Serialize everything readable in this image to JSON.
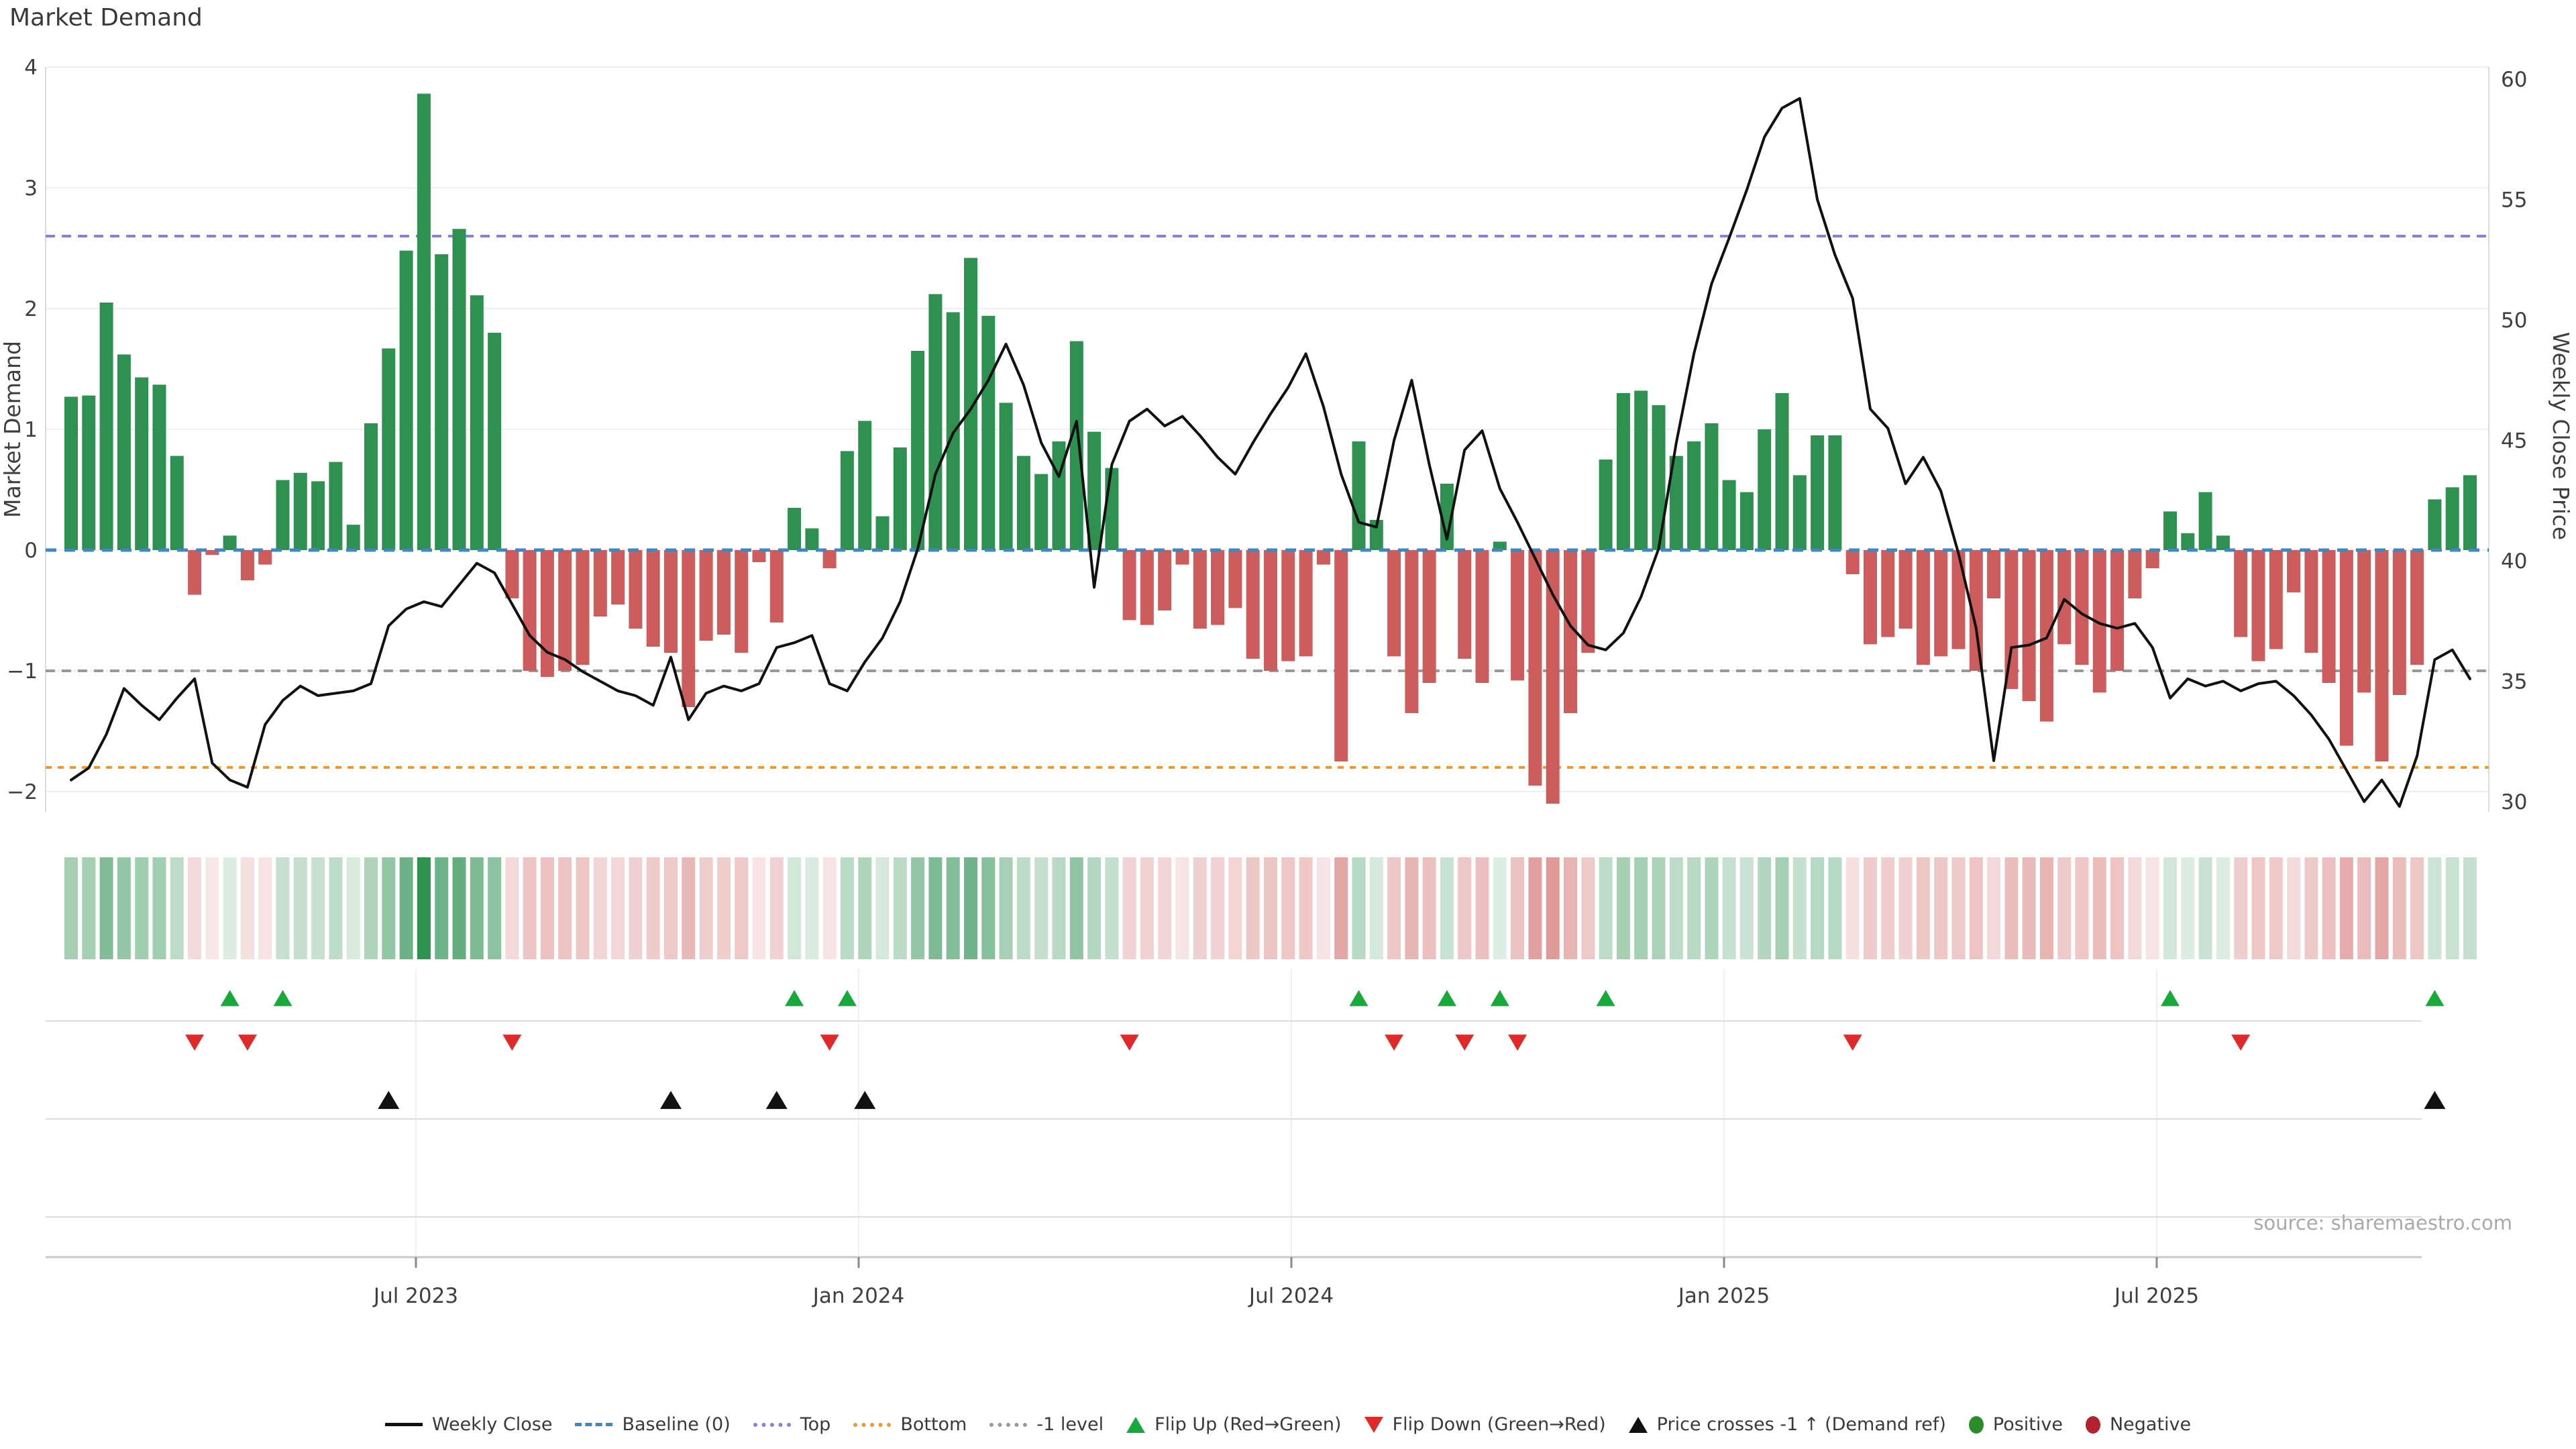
{
  "title": "Market Demand",
  "source": "source: sharemaestro.com",
  "axes": {
    "left_title": "Market Demand",
    "right_title": "Weekly Close Price",
    "left_ticks": [
      4,
      3,
      2,
      1,
      0,
      -1,
      -2
    ],
    "right_ticks": [
      60,
      55,
      50,
      45,
      40,
      35,
      30
    ],
    "x_ticks": [
      {
        "x": 620,
        "label": "Jul 2023"
      },
      {
        "x": 1280,
        "label": "Jan 2024"
      },
      {
        "x": 1925,
        "label": "Jul 2024"
      },
      {
        "x": 2570,
        "label": "Jan 2025"
      },
      {
        "x": 3215,
        "label": "Jul 2025"
      }
    ]
  },
  "colors": {
    "bar_positive": "#2e9152",
    "bar_negative": "#cd5c5c",
    "price_line": "#111111",
    "baseline": "#3f87c0",
    "top_line": "#8781d8",
    "bottom_line": "#f0992e",
    "minus1_line": "#999999",
    "flip_up": "#18a93b",
    "flip_down": "#e02a2a",
    "cross_marker": "#111111",
    "grid": "#eef0f6",
    "panel_grid": "#dcdcdc",
    "axis_text": "#3f3f3f"
  },
  "chart_data": {
    "type": "combo",
    "title": "Market Demand",
    "ylabel_left": "Market Demand",
    "ylabel_right": "Weekly Close Price",
    "ylim_left": [
      -2,
      4
    ],
    "ylim_right": [
      30,
      60
    ],
    "x_tick_labels": [
      "Jul 2023",
      "Jan 2024",
      "Jul 2024",
      "Jan 2025",
      "Jul 2025"
    ],
    "ref_lines": {
      "baseline": 0,
      "top": 2.6,
      "bottom": -1.8,
      "minus1": -1
    },
    "series": [
      {
        "name": "Market Demand",
        "type": "bar"
      },
      {
        "name": "Weekly Close",
        "type": "line"
      }
    ],
    "demand": [
      1.27,
      1.28,
      2.05,
      1.62,
      1.43,
      1.37,
      0.78,
      -0.37,
      -0.04,
      0.12,
      -0.25,
      -0.12,
      0.58,
      0.64,
      0.57,
      0.73,
      0.21,
      1.05,
      1.67,
      2.48,
      3.78,
      2.45,
      2.66,
      2.11,
      1.8,
      -0.4,
      -1.0,
      -1.05,
      -1.0,
      -0.95,
      -0.55,
      -0.45,
      -0.65,
      -0.8,
      -0.85,
      -1.3,
      -0.75,
      -0.7,
      -0.85,
      -0.1,
      -0.6,
      0.35,
      0.18,
      -0.15,
      0.82,
      1.07,
      0.28,
      0.85,
      1.65,
      2.12,
      1.97,
      2.42,
      1.94,
      1.22,
      0.78,
      0.63,
      0.9,
      1.73,
      0.98,
      0.68,
      -0.58,
      -0.62,
      -0.5,
      -0.12,
      -0.65,
      -0.62,
      -0.48,
      -0.9,
      -1.0,
      -0.92,
      -0.88,
      -0.12,
      -1.75,
      0.9,
      0.25,
      -0.88,
      -1.35,
      -1.1,
      0.55,
      -0.9,
      -1.1,
      0.07,
      -1.08,
      -1.95,
      -2.1,
      -1.35,
      -0.85,
      0.75,
      1.3,
      1.32,
      1.2,
      0.78,
      0.9,
      1.05,
      0.58,
      0.48,
      1.0,
      1.3,
      0.62,
      0.95,
      0.95,
      -0.2,
      -0.78,
      -0.72,
      -0.65,
      -0.95,
      -0.88,
      -0.82,
      -1.0,
      -0.4,
      -1.15,
      -1.25,
      -1.42,
      -0.78,
      -0.95,
      -1.18,
      -1.0,
      -0.4,
      -0.15,
      0.32,
      0.14,
      0.48,
      0.12,
      -0.72,
      -0.92,
      -0.82,
      -0.35,
      -0.85,
      -1.1,
      -1.62,
      -1.18,
      -1.75,
      -1.2,
      -0.95,
      0.42,
      0.52,
      0.62
    ],
    "price": [
      30.9,
      31.4,
      32.8,
      34.7,
      34.0,
      33.4,
      34.3,
      35.1,
      31.6,
      30.9,
      30.6,
      33.2,
      34.2,
      34.8,
      34.4,
      34.5,
      34.6,
      34.9,
      37.3,
      38.0,
      38.3,
      38.1,
      39.0,
      39.9,
      39.5,
      38.2,
      36.9,
      36.2,
      35.9,
      35.4,
      35.0,
      34.6,
      34.4,
      34.0,
      36.0,
      33.4,
      34.5,
      34.8,
      34.6,
      34.9,
      36.4,
      36.6,
      36.9,
      34.9,
      34.6,
      35.8,
      36.8,
      38.3,
      40.5,
      43.6,
      45.3,
      46.3,
      47.5,
      49.0,
      47.3,
      44.9,
      43.5,
      45.8,
      38.9,
      44.0,
      45.8,
      46.3,
      45.6,
      46.0,
      45.2,
      44.3,
      43.6,
      44.9,
      46.1,
      47.2,
      48.6,
      46.4,
      43.6,
      41.6,
      41.4,
      45.0,
      47.5,
      44.0,
      40.9,
      44.6,
      45.4,
      43.0,
      41.6,
      40.1,
      38.6,
      37.3,
      36.5,
      36.3,
      37.0,
      38.5,
      40.5,
      44.9,
      48.6,
      51.5,
      53.4,
      55.4,
      57.6,
      58.8,
      59.2,
      55.0,
      52.7,
      50.9,
      46.3,
      45.5,
      43.2,
      44.3,
      42.9,
      40.3,
      37.2,
      31.7,
      36.4,
      36.5,
      36.8,
      38.4,
      37.8,
      37.4,
      37.2,
      37.4,
      36.4,
      34.3,
      35.1,
      34.8,
      35.0,
      34.6,
      34.9,
      35.0,
      34.4,
      33.6,
      32.6,
      31.3,
      30.0,
      30.9,
      29.8,
      31.9,
      35.9,
      36.3,
      35.1
    ],
    "markers": {
      "flip_up": [
        9,
        12,
        41,
        44,
        73,
        78,
        81,
        87,
        119,
        134
      ],
      "flip_down": [
        7,
        10,
        25,
        43,
        60,
        75,
        79,
        82,
        101,
        123
      ],
      "price_cross_minus1": [
        18,
        34,
        40,
        45,
        134
      ]
    },
    "legend_position": "bottom",
    "grid": true
  },
  "legend": {
    "items": [
      {
        "type": "line",
        "color": "#111111",
        "label": "Weekly Close"
      },
      {
        "type": "dashed",
        "color": "#3f87c0",
        "label": "Baseline (0)"
      },
      {
        "type": "dotted",
        "color": "#8781d8",
        "label": "Top"
      },
      {
        "type": "dotted",
        "color": "#f0992e",
        "label": "Bottom"
      },
      {
        "type": "dotted",
        "color": "#999999",
        "label": "-1 level"
      },
      {
        "type": "tri-up",
        "color": "#18a93b",
        "label": "Flip Up (Red→Green)"
      },
      {
        "type": "tri-down",
        "color": "#e02a2a",
        "label": "Flip Down (Green→Red)"
      },
      {
        "type": "tri-up",
        "color": "#111111",
        "label": "Price crosses -1 ↑ (Demand ref)"
      },
      {
        "type": "dot",
        "color": "#2a8f2a",
        "label": "Positive"
      },
      {
        "type": "dot",
        "color": "#b3222d",
        "label": "Negative"
      }
    ]
  }
}
